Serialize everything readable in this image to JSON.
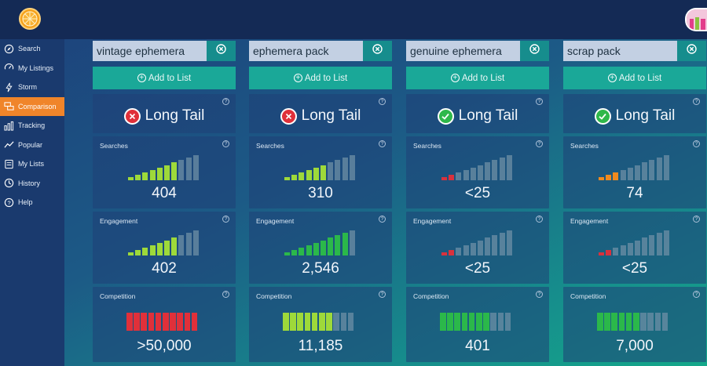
{
  "header": {
    "logo_icon": "orange-slice-icon",
    "avatar_icon": "user-avatar-icon"
  },
  "sidebar": {
    "items": [
      {
        "label": "Search",
        "icon": "compass-icon",
        "active": false
      },
      {
        "label": "My Listings",
        "icon": "gauge-icon",
        "active": false
      },
      {
        "label": "Storm",
        "icon": "lightning-icon",
        "active": false
      },
      {
        "label": "Comparison",
        "icon": "comparison-icon",
        "active": true
      },
      {
        "label": "Tracking",
        "icon": "bar-chart-icon",
        "active": false
      },
      {
        "label": "Popular",
        "icon": "trend-line-icon",
        "active": false
      },
      {
        "label": "My Lists",
        "icon": "list-icon",
        "active": false
      },
      {
        "label": "History",
        "icon": "clock-icon",
        "active": false
      },
      {
        "label": "Help",
        "icon": "question-icon",
        "active": false
      }
    ]
  },
  "labels": {
    "add_to_list": "Add to List",
    "searches": "Searches",
    "engagement": "Engagement",
    "competition": "Competition",
    "help_mark": "?"
  },
  "colors": {
    "bar_green_light": "#9ed93a",
    "bar_green_dark": "#2bb84a",
    "bar_grey": "#6d8fa6",
    "bar_red": "#d9313d",
    "bar_orange": "#f08a1e",
    "bad_badge": "#e0303a",
    "good_badge": "#2fb84a"
  },
  "columns": [
    {
      "keyword": "vintage ephemera",
      "long_tail": {
        "label": "Long Tail",
        "status": "fail"
      },
      "searches": {
        "value": "404",
        "filled_bars": 7,
        "color": "#9ed93a"
      },
      "engagement": {
        "value": "402",
        "filled_bars": 7,
        "color": "#9ed93a"
      },
      "competition": {
        "value": ">50,000",
        "filled_bars": 10,
        "color": "#e0303a"
      }
    },
    {
      "keyword": "ephemera pack",
      "long_tail": {
        "label": "Long Tail",
        "status": "fail"
      },
      "searches": {
        "value": "310",
        "filled_bars": 6,
        "color": "#9ed93a"
      },
      "engagement": {
        "value": "2,546",
        "filled_bars": 9,
        "color": "#2bb84a"
      },
      "competition": {
        "value": "11,185",
        "filled_bars": 7,
        "color": "#9ed93a"
      }
    },
    {
      "keyword": "genuine ephemera",
      "long_tail": {
        "label": "Long Tail",
        "status": "pass"
      },
      "searches": {
        "value": "<25",
        "filled_bars": 2,
        "color": "#d9313d"
      },
      "engagement": {
        "value": "<25",
        "filled_bars": 2,
        "color": "#d9313d"
      },
      "competition": {
        "value": "401",
        "filled_bars": 7,
        "color": "#2bb84a"
      }
    },
    {
      "keyword": "scrap pack",
      "long_tail": {
        "label": "Long Tail",
        "status": "pass"
      },
      "searches": {
        "value": "74",
        "filled_bars": 3,
        "color": "#f08a1e"
      },
      "engagement": {
        "value": "<25",
        "filled_bars": 2,
        "color": "#d9313d"
      },
      "competition": {
        "value": "7,000",
        "filled_bars": 6,
        "color": "#2bb84a"
      }
    }
  ]
}
